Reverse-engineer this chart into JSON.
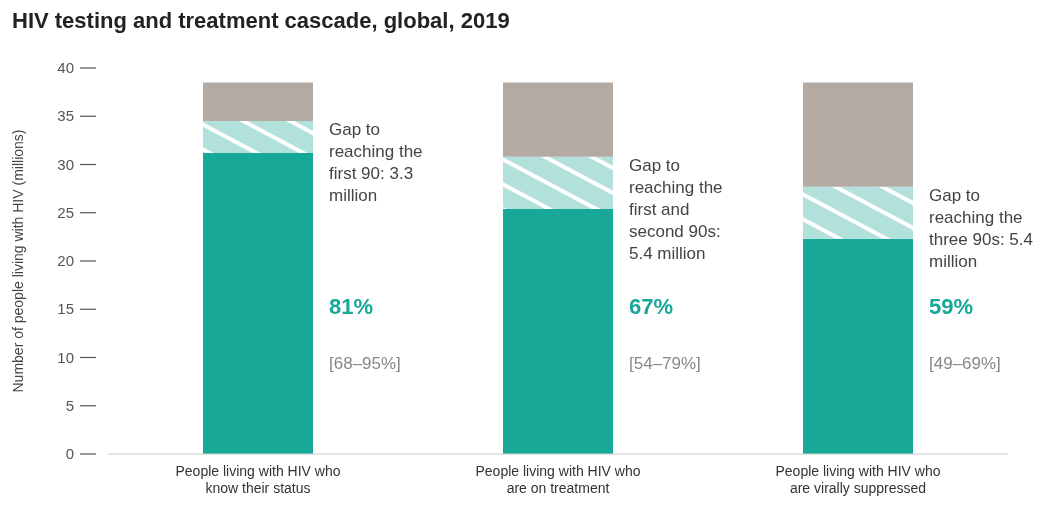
{
  "chart_data": {
    "type": "bar",
    "title": "HIV testing and treatment cascade, global, 2019",
    "ylabel": "Number of people living with HIV (millions)",
    "categories": [
      "People living with HIV who know their status",
      "People living with HIV who are on treatment",
      "People living with HIV who are virally suppressed"
    ],
    "stacked": true,
    "series": [
      {
        "color": "#17a898",
        "values": [
          31.2,
          25.4,
          22.3
        ]
      },
      {
        "color": "#b2e0da",
        "values": [
          3.3,
          5.4,
          5.4
        ]
      },
      {
        "color": "#b3aaa4",
        "values": [
          4.0,
          7.7,
          10.8
        ]
      }
    ],
    "ylim": [
      0,
      40
    ],
    "yticks": [
      0,
      5,
      10,
      15,
      20,
      25,
      30,
      35,
      40
    ],
    "grid": false,
    "legend": false,
    "annotations": [
      "Gap to reaching the first 90: 3.3 million",
      "81%",
      "[68–95%]",
      "Gap to reaching the first and second 90s: 5.4 million",
      "67%",
      "[54–79%]",
      "Gap to reaching the three 90s: 5.4 million",
      "59%",
      "[49–69%]"
    ]
  }
}
